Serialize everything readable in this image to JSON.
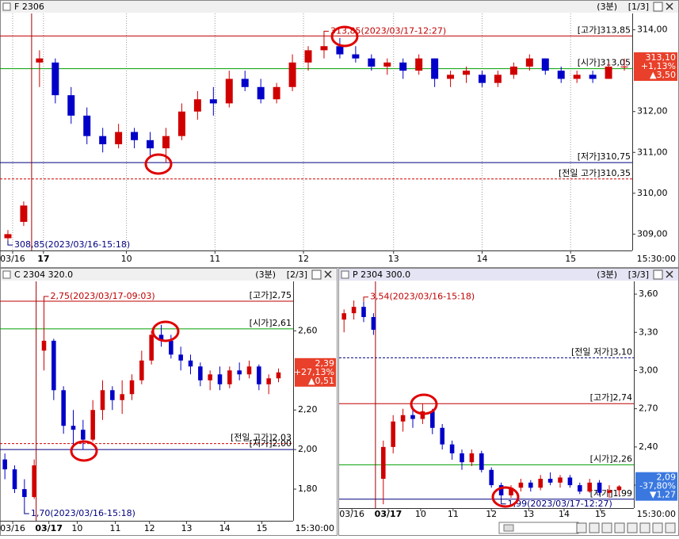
{
  "chart_data": [
    {
      "type": "candlestick",
      "title": "F 2306",
      "interval": "(3분)",
      "page": "[1/3]",
      "up_color": "#d00000",
      "down_color": "#0000c8",
      "grid": true,
      "divider_x": 2,
      "xlim": [
        0,
        40
      ],
      "ylim": [
        308.6,
        314.4
      ],
      "xticks": [
        {
          "value": 0.8,
          "label": "03/16"
        },
        {
          "value": 2.75,
          "label": "17"
        },
        {
          "value": 8,
          "label": "10"
        },
        {
          "value": 13.6,
          "label": "11"
        },
        {
          "value": 19.2,
          "label": "12"
        },
        {
          "value": 24.9,
          "label": "13"
        },
        {
          "value": 30.5,
          "label": "14"
        },
        {
          "value": 36.1,
          "label": "15"
        }
      ],
      "end_label": "15:30:00",
      "yticks": [
        {
          "value": 314,
          "label": "314,00"
        },
        {
          "value": 312,
          "label": "312,00"
        },
        {
          "value": 311,
          "label": "311,00"
        },
        {
          "value": 310,
          "label": "310,00"
        },
        {
          "value": 309,
          "label": "309,00"
        }
      ],
      "open": [
        308.9,
        309.3,
        313.2,
        313.2,
        312.4,
        311.9,
        311.4,
        311.2,
        311.5,
        311.3,
        311.1,
        311.4,
        312.0,
        312.3,
        312.2,
        312.8,
        312.6,
        312.3,
        312.6,
        313.2,
        313.5,
        313.6,
        313.4,
        313.3,
        313.1,
        313.2,
        313.0,
        313.3,
        312.8,
        312.9,
        312.9,
        312.7,
        312.9,
        313.1,
        313.3,
        313.0,
        312.8,
        312.9,
        312.8,
        313.1
      ],
      "high": [
        309.1,
        309.8,
        313.5,
        313.3,
        312.6,
        312.1,
        311.6,
        311.7,
        311.6,
        311.5,
        311.6,
        312.2,
        312.5,
        312.6,
        313.0,
        313.0,
        312.8,
        312.7,
        313.4,
        313.6,
        313.85,
        313.8,
        313.6,
        313.4,
        313.3,
        313.3,
        313.4,
        313.3,
        313.0,
        313.1,
        313.0,
        313.0,
        313.2,
        313.4,
        313.3,
        313.1,
        313.0,
        313.0,
        313.2,
        313.3
      ],
      "low": [
        308.85,
        309.2,
        312.6,
        312.2,
        311.7,
        311.2,
        311.0,
        311.1,
        311.1,
        310.9,
        310.75,
        311.3,
        311.8,
        311.9,
        312.1,
        312.5,
        312.2,
        312.2,
        312.5,
        313.0,
        313.3,
        313.3,
        313.2,
        313.0,
        312.9,
        312.8,
        312.9,
        312.6,
        312.6,
        312.7,
        312.6,
        312.6,
        312.8,
        313.0,
        312.9,
        312.7,
        312.7,
        312.7,
        312.8,
        313.0
      ],
      "close": [
        309.0,
        309.7,
        313.3,
        312.4,
        311.9,
        311.4,
        311.2,
        311.5,
        311.3,
        311.1,
        311.4,
        312.0,
        312.3,
        312.2,
        312.8,
        312.6,
        312.3,
        312.6,
        313.2,
        313.5,
        313.6,
        313.4,
        313.3,
        313.1,
        313.2,
        313.0,
        313.3,
        312.8,
        312.9,
        313.0,
        312.7,
        312.9,
        313.1,
        313.3,
        313.0,
        312.8,
        312.9,
        312.8,
        313.1,
        313.1
      ],
      "lines": [
        {
          "label": "[고가]313,85",
          "value": 313.85,
          "color": "#c00000",
          "dashed": false
        },
        {
          "label": "[시가]313,05",
          "value": 313.05,
          "color": "#00a000",
          "dashed": false
        },
        {
          "label": "[저가]310,75",
          "value": 310.75,
          "color": "#000080",
          "dashed": false
        },
        {
          "label": "[전일 고가]310,35",
          "value": 310.35,
          "color": "#d00000",
          "dashed": true
        }
      ],
      "annotations": [
        {
          "label": "313,85(2023/03/17-12:27)",
          "x": 20,
          "value": 313.85,
          "color": "#c00000"
        },
        {
          "label": "308,85(2023/03/16-15:18)",
          "x": 0,
          "value": 308.85,
          "color": "#000080"
        }
      ],
      "badge": {
        "lines": [
          "313,10",
          "+1,13%",
          "▲3,50"
        ],
        "color": "#e8402a"
      }
    },
    {
      "type": "candlestick",
      "title": "C 2304 320.0",
      "interval": "(3분)",
      "page": "[2/3]",
      "up_color": "#d00000",
      "down_color": "#0000c8",
      "grid": false,
      "divider_x": 3.7,
      "xlim": [
        0,
        30
      ],
      "ylim": [
        1.64,
        2.85
      ],
      "xticks": [
        {
          "value": 1.3,
          "label": "03/16"
        },
        {
          "value": 5.0,
          "label": "03/17"
        },
        {
          "value": 7.9,
          "label": "10"
        },
        {
          "value": 11.8,
          "label": "11"
        },
        {
          "value": 15.3,
          "label": "12"
        },
        {
          "value": 19.1,
          "label": "13"
        },
        {
          "value": 23.0,
          "label": "14"
        },
        {
          "value": 26.8,
          "label": "15"
        }
      ],
      "end_label": "15:30:00",
      "yticks": [
        {
          "value": 2.6,
          "label": "2,60"
        },
        {
          "value": 2.2,
          "label": "2,20"
        },
        {
          "value": 2,
          "label": "2,00"
        },
        {
          "value": 1.8,
          "label": "1,80"
        }
      ],
      "open": [
        1.95,
        1.9,
        1.8,
        1.76,
        2.5,
        2.55,
        2.3,
        2.12,
        2.1,
        2.05,
        2.2,
        2.3,
        2.25,
        2.28,
        2.35,
        2.45,
        2.58,
        2.55,
        2.48,
        2.45,
        2.42,
        2.35,
        2.38,
        2.33,
        2.4,
        2.38,
        2.42,
        2.33,
        2.36
      ],
      "high": [
        1.98,
        1.92,
        1.85,
        1.95,
        2.75,
        2.56,
        2.32,
        2.2,
        2.15,
        2.25,
        2.35,
        2.32,
        2.35,
        2.38,
        2.5,
        2.6,
        2.63,
        2.58,
        2.52,
        2.48,
        2.44,
        2.4,
        2.42,
        2.42,
        2.44,
        2.45,
        2.43,
        2.38,
        2.41
      ],
      "low": [
        1.85,
        1.78,
        1.7,
        1.75,
        2.4,
        2.25,
        2.08,
        2.02,
        2.0,
        2.04,
        2.15,
        2.2,
        2.18,
        2.25,
        2.33,
        2.43,
        2.52,
        2.46,
        2.4,
        2.38,
        2.32,
        2.3,
        2.3,
        2.31,
        2.35,
        2.36,
        2.3,
        2.28,
        2.34
      ],
      "close": [
        1.9,
        1.8,
        1.76,
        1.92,
        2.55,
        2.3,
        2.12,
        2.1,
        2.05,
        2.2,
        2.3,
        2.25,
        2.28,
        2.35,
        2.45,
        2.58,
        2.55,
        2.48,
        2.45,
        2.42,
        2.35,
        2.38,
        2.33,
        2.4,
        2.38,
        2.42,
        2.33,
        2.36,
        2.39
      ],
      "lines": [
        {
          "label": "[고가]2,75",
          "value": 2.75,
          "color": "#c00000",
          "dashed": false
        },
        {
          "label": "[시가]2,61",
          "value": 2.61,
          "color": "#00a000",
          "dashed": false
        },
        {
          "label": "[전일 고가]2,03",
          "value": 2.03,
          "color": "#d00000",
          "dashed": true
        },
        {
          "label": "[저가]2,00",
          "value": 2.0,
          "color": "#000080",
          "dashed": false
        }
      ],
      "annotations": [
        {
          "label": "2,75(2023/03/17-09:03)",
          "x": 4,
          "value": 2.75,
          "color": "#c00000"
        },
        {
          "label": "1,70(2023/03/16-15:18)",
          "x": 2,
          "value": 1.7,
          "color": "#000080"
        }
      ],
      "badge": {
        "lines": [
          "2,39",
          "+27,13%",
          "▲0,51"
        ],
        "color": "#e8402a"
      }
    },
    {
      "type": "candlestick",
      "title": "P 2304 300.0",
      "interval": "(3분)",
      "page": "[3/3]",
      "up_color": "#d00000",
      "down_color": "#0000c8",
      "grid": false,
      "divider_x": 3.7,
      "xlim": [
        0,
        30
      ],
      "ylim": [
        1.92,
        3.7
      ],
      "xticks": [
        {
          "value": 1.3,
          "label": "03/16"
        },
        {
          "value": 5.0,
          "label": "03/17"
        },
        {
          "value": 8.3,
          "label": "10"
        },
        {
          "value": 11.6,
          "label": "11"
        },
        {
          "value": 15.5,
          "label": "12"
        },
        {
          "value": 19.3,
          "label": "13"
        },
        {
          "value": 22.9,
          "label": "14"
        },
        {
          "value": 26.6,
          "label": "15"
        }
      ],
      "end_label": "15:30:00",
      "yticks": [
        {
          "value": 3.6,
          "label": "3,60"
        },
        {
          "value": 3.3,
          "label": "3,30"
        },
        {
          "value": 3,
          "label": "3,00"
        },
        {
          "value": 2.7,
          "label": "2,70"
        },
        {
          "value": 2.4,
          "label": "2,40"
        },
        {
          "value": 2.1,
          "label": "2,10"
        }
      ],
      "open": [
        3.4,
        3.45,
        3.5,
        3.42,
        2.15,
        2.4,
        2.6,
        2.65,
        2.62,
        2.68,
        2.55,
        2.42,
        2.35,
        2.28,
        2.35,
        2.22,
        2.1,
        2.02,
        2.08,
        2.12,
        2.08,
        2.15,
        2.12,
        2.16,
        2.1,
        2.05,
        2.12,
        2.04,
        2.06
      ],
      "high": [
        3.48,
        3.55,
        3.54,
        3.45,
        2.45,
        2.65,
        2.7,
        2.72,
        2.74,
        2.7,
        2.58,
        2.45,
        2.38,
        2.38,
        2.37,
        2.24,
        2.12,
        2.1,
        2.15,
        2.14,
        2.18,
        2.2,
        2.18,
        2.18,
        2.12,
        2.15,
        2.14,
        2.1,
        2.1
      ],
      "low": [
        3.3,
        3.4,
        3.38,
        3.28,
        1.95,
        2.35,
        2.52,
        2.55,
        2.58,
        2.5,
        2.38,
        2.3,
        2.22,
        2.25,
        2.2,
        2.08,
        1.99,
        2.0,
        2.05,
        2.05,
        2.06,
        2.1,
        2.08,
        2.08,
        2.03,
        2.04,
        2.02,
        2.0,
        2.02
      ],
      "close": [
        3.45,
        3.5,
        3.42,
        3.32,
        2.4,
        2.6,
        2.65,
        2.62,
        2.68,
        2.55,
        2.42,
        2.35,
        2.28,
        2.35,
        2.22,
        2.1,
        2.02,
        2.08,
        2.12,
        2.08,
        2.15,
        2.12,
        2.16,
        2.1,
        2.05,
        2.12,
        2.04,
        2.06,
        2.09
      ],
      "lines": [
        {
          "label": "[전일 저가]3,10",
          "value": 3.1,
          "color": "#000080",
          "dashed": true
        },
        {
          "label": "[고가]2,74",
          "value": 2.74,
          "color": "#c00000",
          "dashed": false
        },
        {
          "label": "[시가]2,26",
          "value": 2.26,
          "color": "#00a000",
          "dashed": false
        },
        {
          "label": "[저가]1,99",
          "value": 1.99,
          "color": "#000080",
          "dashed": false
        }
      ],
      "annotations": [
        {
          "label": "3,54(2023/03/16-15:18)",
          "x": 2,
          "value": 3.54,
          "color": "#c00000"
        },
        {
          "label": "1,99(2023/03/17-12:27)",
          "x": 16,
          "value": 1.99,
          "color": "#000080"
        }
      ],
      "badge": {
        "lines": [
          "2,09",
          "-37,80%",
          "▼1,27"
        ],
        "color": "#3a78e0"
      }
    }
  ]
}
